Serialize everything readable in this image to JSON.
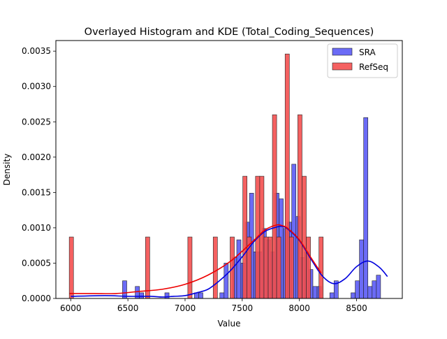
{
  "chart_data": {
    "type": "bar",
    "title": "Overlayed Histogram and KDE (Total_Coding_Sequences)",
    "xlabel": "Value",
    "ylabel": "Density",
    "xlim": [
      5870,
      8900
    ],
    "ylim": [
      0,
      0.00365
    ],
    "xticks": [
      6000,
      6500,
      7000,
      7500,
      8000,
      8500
    ],
    "yticks": [
      0.0,
      0.0005,
      0.001,
      0.0015,
      0.002,
      0.0025,
      0.003,
      0.0035
    ],
    "ytick_labels": [
      "0.0000",
      "0.0005",
      "0.0010",
      "0.0015",
      "0.0020",
      "0.0025",
      "0.0030",
      "0.0035"
    ],
    "legend_position": "top-right",
    "grid": false,
    "series": [
      {
        "name": "SRA",
        "kind": "histogram",
        "bar_color": "#5b5bf5",
        "line_color": "#0000dd",
        "bin_width": 37,
        "bins": [
          [
            6453,
            0.00025
          ],
          [
            6564,
            0.00017
          ],
          [
            6601,
            8e-05
          ],
          [
            6823,
            8e-05
          ],
          [
            7082,
            8e-05
          ],
          [
            7119,
            8e-05
          ],
          [
            7304,
            8e-05
          ],
          [
            7341,
            0.0005
          ],
          [
            7415,
            0.00058
          ],
          [
            7452,
            0.00083
          ],
          [
            7489,
            0.0005
          ],
          [
            7526,
            0.00108
          ],
          [
            7563,
            0.00149
          ],
          [
            7600,
            0.00066
          ],
          [
            7637,
            0.00066
          ],
          [
            7674,
            0.00099
          ],
          [
            7711,
            0.00083
          ],
          [
            7748,
            0.00066
          ],
          [
            7785,
            0.00149
          ],
          [
            7822,
            0.00141
          ],
          [
            7859,
            0.00099
          ],
          [
            7896,
            0.00108
          ],
          [
            7933,
            0.0019
          ],
          [
            7970,
            0.00116
          ],
          [
            8007,
            0.00058
          ],
          [
            8044,
            0.00066
          ],
          [
            8081,
            0.00041
          ],
          [
            8118,
            0.00017
          ],
          [
            8155,
            0.00017
          ],
          [
            8266,
            8e-05
          ],
          [
            8303,
            0.00025
          ],
          [
            8451,
            8e-05
          ],
          [
            8488,
            0.00025
          ],
          [
            8525,
            0.00083
          ],
          [
            8562,
            0.00256
          ],
          [
            8599,
            0.00017
          ],
          [
            8636,
            0.00025
          ],
          [
            8673,
            0.00033
          ]
        ],
        "kde": [
          [
            6000,
            3e-05
          ],
          [
            6300,
            4e-05
          ],
          [
            6500,
            3e-05
          ],
          [
            6700,
            3e-05
          ],
          [
            6800,
            2e-05
          ],
          [
            6900,
            3e-05
          ],
          [
            7000,
            4e-05
          ],
          [
            7100,
            8e-05
          ],
          [
            7200,
            0.00013
          ],
          [
            7300,
            0.00025
          ],
          [
            7400,
            0.0004
          ],
          [
            7500,
            0.00059
          ],
          [
            7600,
            0.0008
          ],
          [
            7700,
            0.00095
          ],
          [
            7800,
            0.00101
          ],
          [
            7850,
            0.00102
          ],
          [
            7900,
            0.00098
          ],
          [
            8000,
            0.00082
          ],
          [
            8100,
            0.00056
          ],
          [
            8200,
            0.00032
          ],
          [
            8300,
            0.00021
          ],
          [
            8400,
            0.00028
          ],
          [
            8500,
            0.00045
          ],
          [
            8600,
            0.00053
          ],
          [
            8700,
            0.00044
          ],
          [
            8770,
            0.00031
          ]
        ]
      },
      {
        "name": "RefSeq",
        "kind": "histogram",
        "bar_color": "#f45050",
        "line_color": "#ee0000",
        "bin_width": 37,
        "bins": [
          [
            5987,
            0.00087
          ],
          [
            6654,
            0.00087
          ],
          [
            7024,
            0.00087
          ],
          [
            7246,
            0.00087
          ],
          [
            7394,
            0.00087
          ],
          [
            7505,
            0.00173
          ],
          [
            7542,
            0.00087
          ],
          [
            7616,
            0.00173
          ],
          [
            7653,
            0.00173
          ],
          [
            7690,
            0.00087
          ],
          [
            7727,
            0.00087
          ],
          [
            7764,
            0.0026
          ],
          [
            7801,
            0.00087
          ],
          [
            7875,
            0.00346
          ],
          [
            7912,
            0.00087
          ],
          [
            7986,
            0.0026
          ],
          [
            8023,
            0.00173
          ],
          [
            8060,
            0.00087
          ],
          [
            8171,
            0.00087
          ]
        ],
        "kde": [
          [
            5990,
            7e-05
          ],
          [
            6200,
            7e-05
          ],
          [
            6400,
            7e-05
          ],
          [
            6600,
            0.0001
          ],
          [
            6800,
            0.00013
          ],
          [
            7000,
            0.0002
          ],
          [
            7200,
            0.00033
          ],
          [
            7400,
            0.00053
          ],
          [
            7600,
            0.00082
          ],
          [
            7700,
            0.00097
          ],
          [
            7800,
            0.00104
          ],
          [
            7850,
            0.00103
          ],
          [
            7900,
            0.00099
          ],
          [
            8000,
            0.00083
          ],
          [
            8100,
            0.00058
          ],
          [
            8190,
            0.00036
          ]
        ]
      }
    ]
  }
}
